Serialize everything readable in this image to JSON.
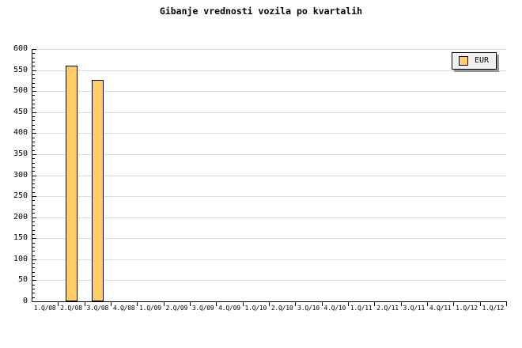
{
  "page_title": "Gibanje vrednosti vozila po kvartalih",
  "chart_data": {
    "type": "bar",
    "title": "Gibanje vrednosti vozila po kvartalih",
    "categories": [
      "1.Q/08",
      "2.Q/08",
      "3.Q/08",
      "4.Q/08",
      "1.Q/09",
      "2.Q/09",
      "3.Q/09",
      "4.Q/09",
      "1.Q/10",
      "2.Q/10",
      "3.Q/10",
      "4.Q/10",
      "1.Q/11",
      "2.Q/11",
      "3.Q/11",
      "4.Q/11",
      "1.Q/12",
      "1.Q/12"
    ],
    "series": [
      {
        "name": "EUR",
        "values": [
          null,
          560,
          527,
          null,
          null,
          null,
          null,
          null,
          null,
          null,
          null,
          null,
          null,
          null,
          null,
          null,
          null,
          null
        ]
      }
    ],
    "xlabel": "",
    "ylabel": "",
    "ylim": [
      0,
      600
    ],
    "ytick_major": 50,
    "ytick_minor": 10,
    "grid": "horizontal-major",
    "legend_position": "top-right",
    "colors": {
      "bar_fill": "#FFCC66",
      "bar_border": "#000000",
      "gridline": "#DCDCDC",
      "axis": "#000000",
      "text": "#000000",
      "background": "#FFFFFF",
      "legend_bg": "#F0F0F0",
      "legend_border": "#000000",
      "legend_shadow": "#999999"
    }
  }
}
